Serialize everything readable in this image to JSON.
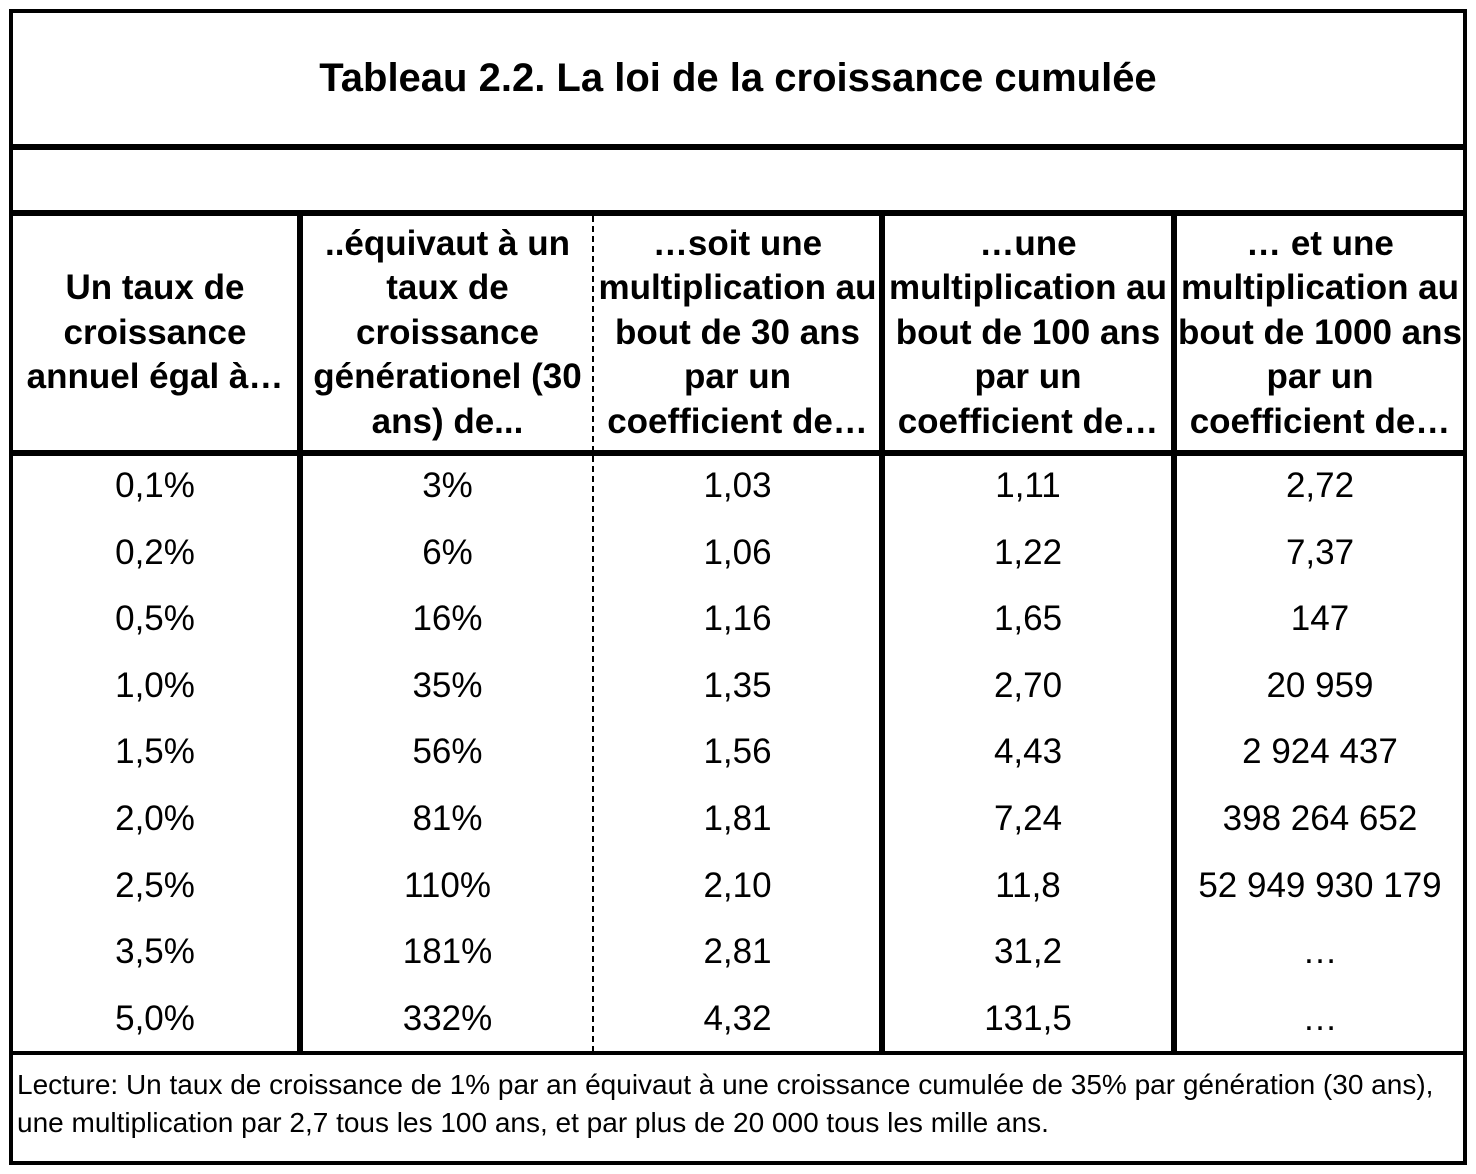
{
  "title": "Tableau 2.2. La loi de la croissance cumulée",
  "headers": [
    "Un taux de croissance annuel égal à…",
    "..équivaut à un taux de croissance générationel (30 ans) de...",
    "…soit une multiplication au bout de 30 ans par un coefficient de…",
    "…une multiplication au bout de 100 ans par un coefficient de…",
    "… et une multiplication au bout de 1000 ans par un coefficient de…"
  ],
  "rows": [
    [
      "0,1%",
      "3%",
      "1,03",
      "1,11",
      "2,72"
    ],
    [
      "0,2%",
      "6%",
      "1,06",
      "1,22",
      "7,37"
    ],
    [
      "0,5%",
      "16%",
      "1,16",
      "1,65",
      "147"
    ],
    [
      "1,0%",
      "35%",
      "1,35",
      "2,70",
      "20 959"
    ],
    [
      "1,5%",
      "56%",
      "1,56",
      "4,43",
      "2 924 437"
    ],
    [
      "2,0%",
      "81%",
      "1,81",
      "7,24",
      "398 264 652"
    ],
    [
      "2,5%",
      "110%",
      "2,10",
      "11,8",
      "52 949 930 179"
    ],
    [
      "3,5%",
      "181%",
      "2,81",
      "31,2",
      "…"
    ],
    [
      "5,0%",
      "332%",
      "4,32",
      "131,5",
      "…"
    ]
  ],
  "note": "Lecture: Un taux de croissance de 1% par an équivaut à une croissance cumulée de 35% par génération (30 ans), une multiplication par 2,7 tous les 100 ans, et par plus de 20 000 tous les mille ans."
}
